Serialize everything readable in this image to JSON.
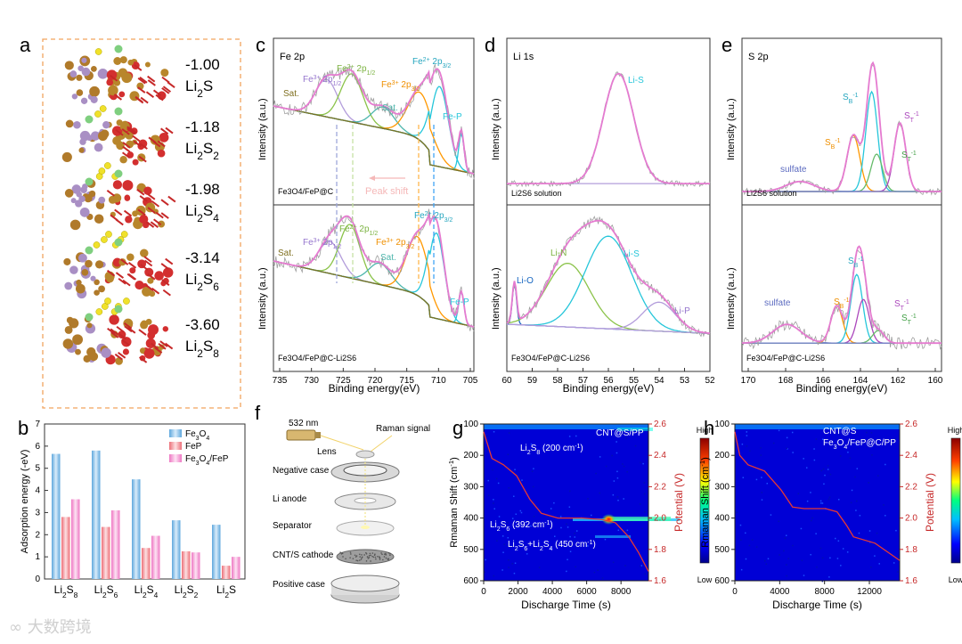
{
  "panels": {
    "a": {
      "label": "a",
      "entries": [
        {
          "energy": "-1.00",
          "formula": "Li",
          "sub": "2",
          "formula2": "S",
          "sub2": ""
        },
        {
          "energy": "-1.18",
          "formula": "Li",
          "sub": "2",
          "formula2": "S",
          "sub2": "2"
        },
        {
          "energy": "-1.98",
          "formula": "Li",
          "sub": "2",
          "formula2": "S",
          "sub2": "4"
        },
        {
          "energy": "-3.14",
          "formula": "Li",
          "sub": "2",
          "formula2": "S",
          "sub2": "6"
        },
        {
          "energy": "-3.60",
          "formula": "Li",
          "sub": "2",
          "formula2": "S",
          "sub2": "8"
        }
      ]
    },
    "b": {
      "label": "b"
    },
    "c": {
      "label": "c",
      "title": "Fe 2p",
      "ylabel": "Intensity (a.u.)",
      "xlabel": "Binding energy(eV)",
      "xticks": [
        "735",
        "730",
        "725",
        "720",
        "715",
        "710",
        "705"
      ],
      "top_sample": "Fe3O4/FeP@C",
      "bottom_sample": "Fe3O4/FeP@C-Li2S6",
      "peak_shift": "Peak shift",
      "labels": {
        "sat": "Sat.",
        "fep": "Fe-P",
        "fe3_12": "Fe3+ 2p1/2",
        "fe2_12": "Fe2+ 2p1/2",
        "fe3_32": "Fe3+ 2p3/2",
        "fe2_32": "Fe2+ 2p3/2"
      }
    },
    "d": {
      "label": "d",
      "title": "Li 1s",
      "ylabel": "Intensity (a.u.)",
      "xlabel": "Binding energy(eV)",
      "xticks": [
        "60",
        "59",
        "58",
        "57",
        "56",
        "55",
        "54",
        "53",
        "52"
      ],
      "top_sample": "Li2S6 solution",
      "bottom_sample": "Fe3O4/FeP@C-Li2S6",
      "labels": {
        "lis": "Li-S",
        "lio": "Li-O",
        "lin": "Li-N",
        "lip": "Li-P"
      }
    },
    "e": {
      "label": "e",
      "title": "S 2p",
      "ylabel": "Intensity (a.u.)",
      "xlabel": "Binding energy(eV)",
      "xticks": [
        "170",
        "168",
        "166",
        "164",
        "162",
        "160"
      ],
      "top_sample": "Li2S6 solution",
      "bottom_sample": "Fe3O4/FeP@C-Li2S6",
      "labels": {
        "sulfate": "sulfate",
        "sb": "SB",
        "st": "ST"
      }
    },
    "f": {
      "label": "f",
      "laser": "532 nm",
      "raman_signal": "Raman signal",
      "parts": [
        "Lens",
        "Negative case",
        "Li anode",
        "Separator",
        "CNT/S cathode",
        "Positive case"
      ]
    },
    "g": {
      "label": "g",
      "legend_text": "CNT@S/PP",
      "ylabel": "Rmaman Shift (cm",
      "y2label": "Potential (V)",
      "xlabel": "Discharge Time (s)",
      "xticks": [
        "0",
        "2000",
        "4000",
        "6000",
        "8000"
      ],
      "yticks": [
        "100",
        "200",
        "300",
        "400",
        "500",
        "600"
      ],
      "y2ticks": [
        "2.6",
        "2.4",
        "2.2",
        "2.0",
        "1.8",
        "1.6"
      ],
      "ann1": "(200 cm",
      "ann2": "(392 cm",
      "ann3": "(450 cm",
      "cbar_high": "High",
      "cbar_low": "Low"
    },
    "h": {
      "label": "h",
      "legend_line1": "CNT@S",
      "legend_line2": "Fe3O4/FeP@C/PP",
      "ylabel": "Rmaman Shift (cm",
      "y2label": "Potential (V)",
      "xlabel": "Discharge Time (s)",
      "xticks": [
        "0",
        "4000",
        "8000",
        "12000"
      ],
      "yticks": [
        "100",
        "200",
        "300",
        "400",
        "500",
        "600"
      ],
      "y2ticks": [
        "2.6",
        "2.4",
        "2.2",
        "2.0",
        "1.8",
        "1.6"
      ],
      "cbar_high": "High",
      "cbar_low": "Low"
    }
  },
  "chart_data": [
    {
      "type": "bar",
      "panel": "b",
      "ylabel": "Adsorption energy (-eV)",
      "ylim": [
        0,
        7
      ],
      "yticks": [
        0,
        1,
        2,
        3,
        4,
        5,
        6,
        7
      ],
      "categories": [
        "Li2S8",
        "Li2S6",
        "Li2S4",
        "Li2S2",
        "Li2S"
      ],
      "series": [
        {
          "name": "Fe3O4",
          "color": "#9cc7ea",
          "values": [
            5.65,
            5.8,
            4.5,
            2.65,
            2.45
          ]
        },
        {
          "name": "FeP",
          "color": "#f4a3a8",
          "values": [
            2.8,
            2.35,
            1.4,
            1.25,
            0.6
          ]
        },
        {
          "name": "Fe3O4/FeP",
          "color": "#f4b0d8",
          "values": [
            3.6,
            3.1,
            1.95,
            1.2,
            1.0
          ]
        }
      ],
      "legend_placement": "top-right"
    }
  ],
  "watermark": "大数跨境"
}
